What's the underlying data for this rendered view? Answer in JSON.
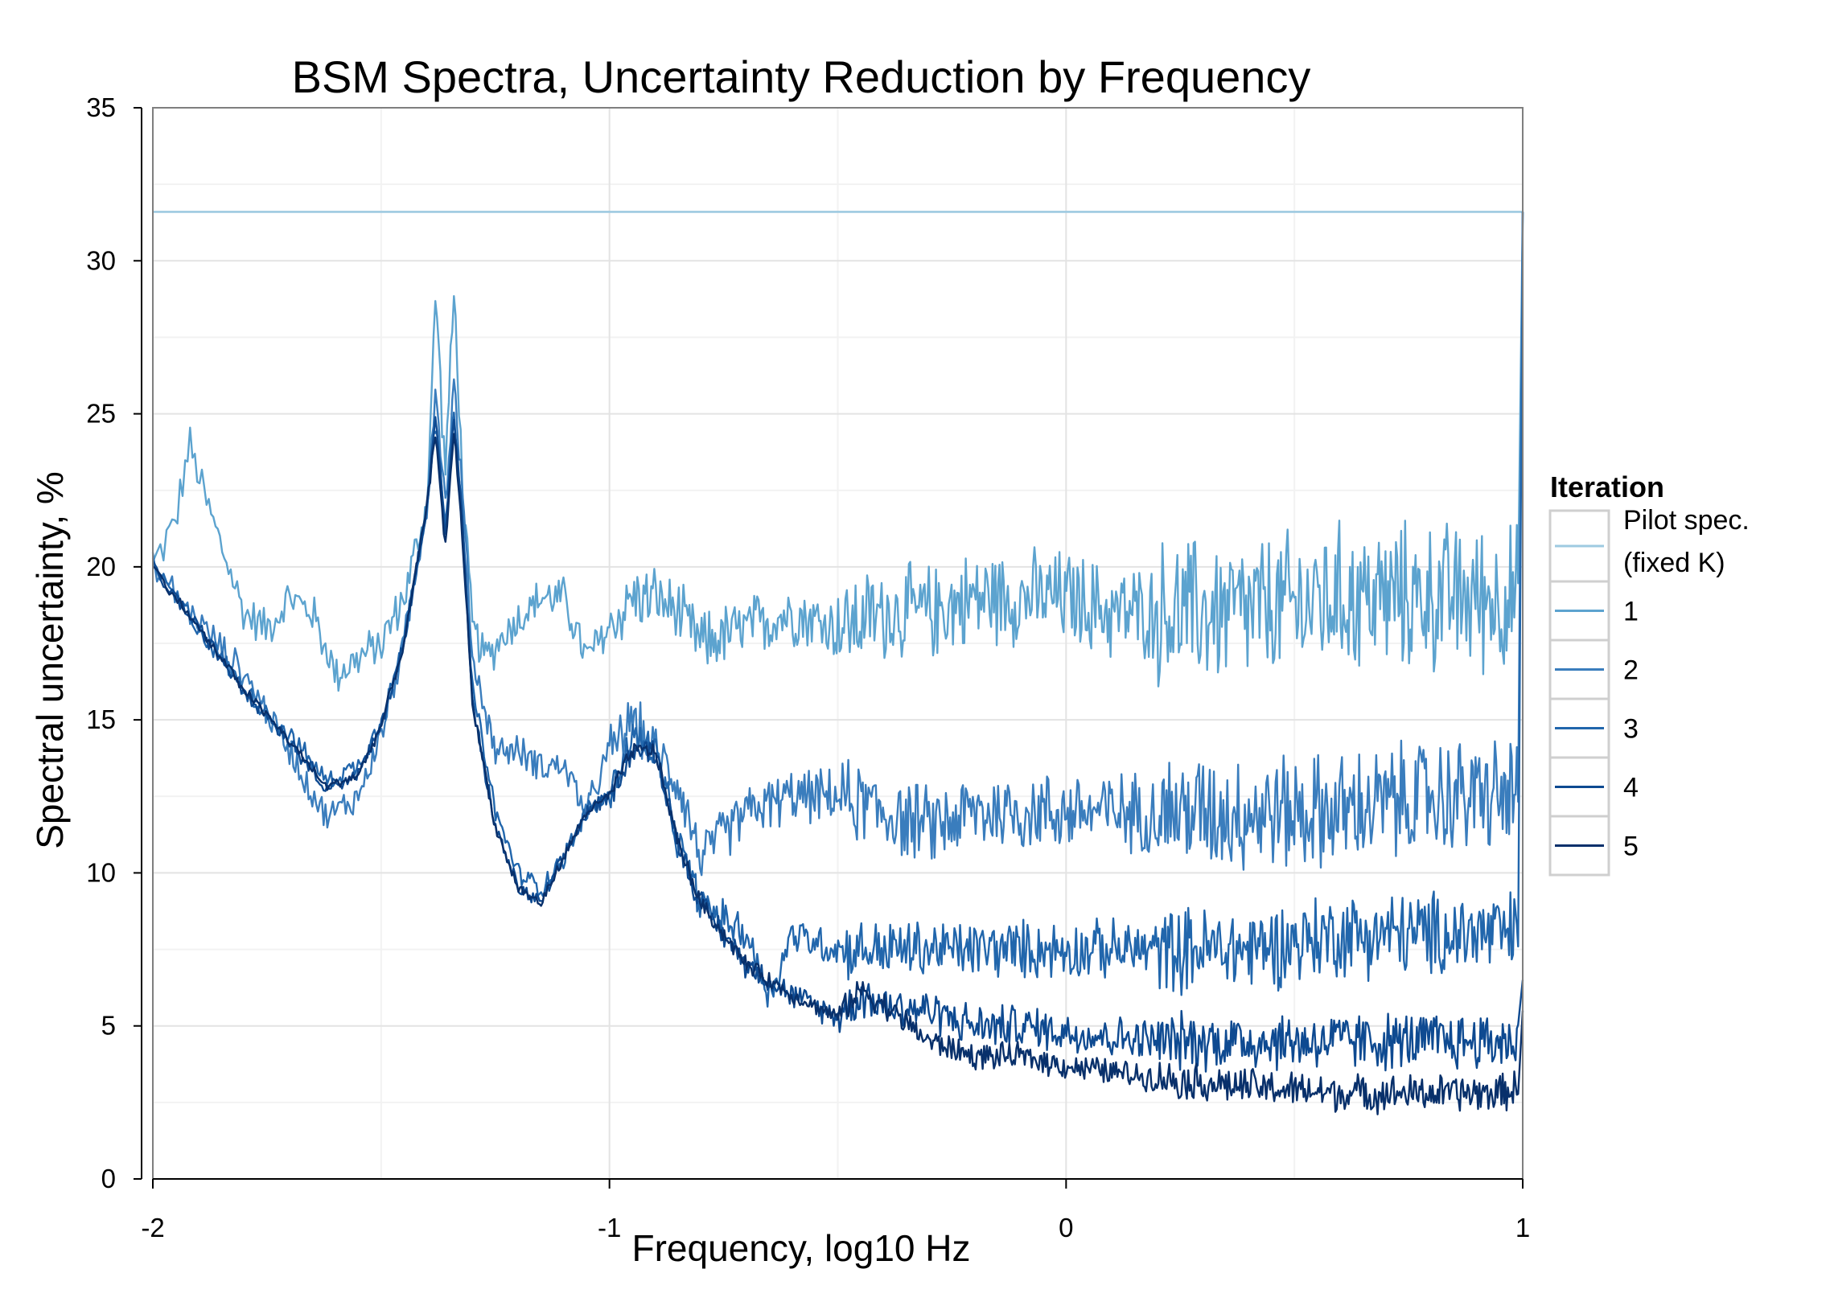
{
  "chart_data": {
    "type": "line",
    "title": "BSM Spectra, Uncertainty Reduction by Frequency",
    "xlabel": "Frequency, log10 Hz",
    "ylabel": "Spectral uncertainty, %",
    "xlim": [
      -2,
      1
    ],
    "ylim": [
      0,
      35
    ],
    "x_ticks": [
      -2,
      -1,
      0,
      1
    ],
    "x_tick_labels": [
      "-2",
      "-1",
      "0",
      "1"
    ],
    "y_ticks": [
      0,
      5,
      10,
      15,
      20,
      25,
      30,
      35
    ],
    "y_tick_labels": [
      "0",
      "5",
      "10",
      "15",
      "20",
      "25",
      "30",
      "35"
    ],
    "grid": true,
    "legend": {
      "title": "Iteration",
      "position": "right",
      "entries": [
        "Pilot spec.",
        "(fixed K)",
        "1",
        "2",
        "3",
        "4",
        "5"
      ]
    },
    "series": [
      {
        "name": "Pilot spec. (fixed K)",
        "color": "#9ecae1",
        "x": [
          -2,
          1
        ],
        "y": [
          31.6,
          31.6
        ],
        "noise": 0
      },
      {
        "name": "1",
        "color": "#5ca3cf",
        "x": [
          -2,
          -1.95,
          -1.92,
          -1.88,
          -1.8,
          -1.75,
          -1.7,
          -1.65,
          -1.6,
          -1.55,
          -1.5,
          -1.45,
          -1.4,
          -1.38,
          -1.36,
          -1.34,
          -1.32,
          -1.3,
          -1.27,
          -1.22,
          -1.15,
          -1.1,
          -1.05,
          -1.0,
          -0.95,
          -0.9,
          -0.85,
          -0.8,
          -0.7,
          -0.6,
          -0.5,
          -0.4,
          -0.3,
          -0.2,
          -0.1,
          0.0,
          0.1,
          0.2,
          0.4,
          0.6,
          0.8,
          0.95,
          0.99,
          1.0
        ],
        "y": [
          20,
          21.5,
          24,
          22,
          18.5,
          18,
          19,
          18.5,
          16.5,
          17,
          17.5,
          19,
          22,
          29,
          23,
          29,
          22,
          18,
          17,
          18,
          19,
          19,
          17,
          18,
          19,
          19,
          18.5,
          17.5,
          18,
          18.5,
          18,
          18.5,
          18.5,
          19,
          19,
          19,
          18.5,
          18.5,
          18.5,
          19,
          19,
          19,
          19,
          31.6
        ],
        "noise": [
          0.8,
          1.2,
          1.8,
          2.8
        ]
      },
      {
        "name": "2",
        "color": "#3a7dbd",
        "x": [
          -2,
          -1.9,
          -1.8,
          -1.7,
          -1.62,
          -1.55,
          -1.5,
          -1.45,
          -1.4,
          -1.38,
          -1.36,
          -1.34,
          -1.32,
          -1.3,
          -1.25,
          -1.2,
          -1.15,
          -1.1,
          -1.05,
          -1.0,
          -0.95,
          -0.9,
          -0.85,
          -0.8,
          -0.7,
          -0.6,
          -0.5,
          -0.4,
          -0.3,
          -0.2,
          -0.1,
          0.0,
          0.2,
          0.4,
          0.6,
          0.8,
          0.95,
          0.99,
          1.0
        ],
        "y": [
          20,
          18.2,
          16.5,
          14,
          11.8,
          12.5,
          14.5,
          17.5,
          22,
          26,
          22,
          26,
          22,
          17,
          14,
          14,
          13.5,
          13.5,
          12,
          14,
          15,
          14,
          13,
          10.5,
          12,
          12.5,
          12.5,
          12,
          11.5,
          12,
          12,
          12,
          12,
          12,
          12,
          12.5,
          12.5,
          12.5,
          31.6
        ],
        "noise": [
          0.6,
          1.0,
          1.5,
          2.2
        ]
      },
      {
        "name": "3",
        "color": "#2166ac",
        "x": [
          -2,
          -1.9,
          -1.8,
          -1.7,
          -1.62,
          -1.55,
          -1.5,
          -1.45,
          -1.4,
          -1.38,
          -1.36,
          -1.34,
          -1.32,
          -1.3,
          -1.25,
          -1.2,
          -1.15,
          -1.1,
          -1.05,
          -1.0,
          -0.95,
          -0.9,
          -0.85,
          -0.8,
          -0.7,
          -0.65,
          -0.6,
          -0.5,
          -0.4,
          -0.3,
          -0.2,
          -0.1,
          0.0,
          0.2,
          0.4,
          0.6,
          0.8,
          0.95,
          0.99,
          1.0
        ],
        "y": [
          20,
          18,
          16,
          14.5,
          13,
          13.5,
          15,
          17.5,
          22,
          25,
          21,
          25,
          21,
          16,
          12,
          10,
          9.5,
          10.5,
          12,
          12.5,
          14.5,
          14,
          11,
          9,
          8,
          6,
          8,
          7.5,
          7.5,
          7.5,
          7.5,
          7.5,
          7.5,
          7.5,
          7.5,
          8,
          8,
          8,
          8,
          31.6
        ],
        "noise": [
          0.4,
          0.7,
          1.1,
          1.6
        ]
      },
      {
        "name": "4",
        "color": "#0e4a91",
        "x": [
          -2,
          -1.9,
          -1.8,
          -1.7,
          -1.62,
          -1.55,
          -1.5,
          -1.45,
          -1.4,
          -1.38,
          -1.36,
          -1.34,
          -1.32,
          -1.3,
          -1.25,
          -1.2,
          -1.15,
          -1.1,
          -1.05,
          -1.0,
          -0.95,
          -0.9,
          -0.85,
          -0.8,
          -0.7,
          -0.6,
          -0.5,
          -0.45,
          -0.4,
          -0.3,
          -0.2,
          -0.1,
          0.0,
          0.2,
          0.4,
          0.6,
          0.8,
          0.95,
          0.99,
          1.0
        ],
        "y": [
          20,
          18,
          16,
          14.3,
          12.8,
          13.2,
          14.8,
          17.5,
          22,
          25,
          21,
          25,
          21,
          15.5,
          11.5,
          9.5,
          9,
          10.5,
          12,
          12.5,
          14,
          14,
          11,
          9,
          7,
          6,
          5.3,
          6,
          5.7,
          5.5,
          5,
          5,
          4.8,
          4.5,
          4.5,
          4.5,
          4.5,
          4.5,
          4.5,
          6.5
        ],
        "noise": [
          0.3,
          0.5,
          0.8,
          1.1
        ]
      },
      {
        "name": "5",
        "color": "#08306b",
        "x": [
          -2,
          -1.9,
          -1.8,
          -1.7,
          -1.62,
          -1.55,
          -1.5,
          -1.45,
          -1.4,
          -1.38,
          -1.36,
          -1.34,
          -1.32,
          -1.3,
          -1.25,
          -1.2,
          -1.15,
          -1.1,
          -1.05,
          -1.0,
          -0.95,
          -0.9,
          -0.85,
          -0.8,
          -0.7,
          -0.6,
          -0.5,
          -0.45,
          -0.4,
          -0.3,
          -0.2,
          -0.1,
          0.0,
          0.2,
          0.4,
          0.6,
          0.8,
          0.95,
          0.99,
          1.0
        ],
        "y": [
          20,
          18,
          16,
          14.3,
          12.8,
          13.2,
          14.8,
          17.5,
          22,
          24.5,
          20.5,
          24.5,
          20.5,
          15.5,
          11.5,
          9.5,
          9,
          10.5,
          12,
          12.5,
          14,
          14,
          11,
          9,
          7,
          6,
          5.3,
          6.2,
          5.7,
          4.5,
          4,
          4,
          3.7,
          3.3,
          3.0,
          2.8,
          2.8,
          2.8,
          3,
          5.5
        ],
        "noise": [
          0.2,
          0.3,
          0.5,
          0.7
        ]
      }
    ]
  }
}
